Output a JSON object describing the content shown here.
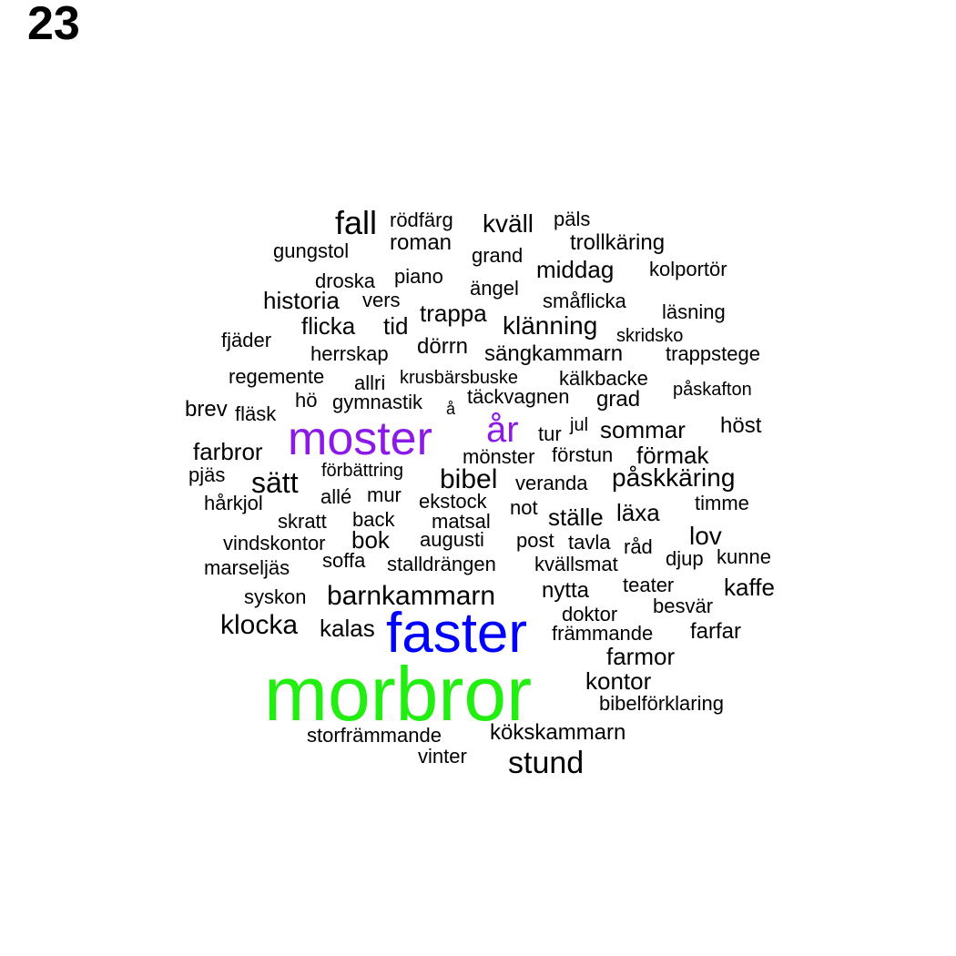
{
  "page_number": "23",
  "colors": {
    "default": "#000000",
    "purple": "#8b1ae8",
    "blue": "#0000ff",
    "green": "#22ee11"
  },
  "words": [
    {
      "text": "morbror",
      "color": "green"
    },
    {
      "text": "faster",
      "color": "blue"
    },
    {
      "text": "moster",
      "color": "purple"
    },
    {
      "text": "år",
      "color": "purple"
    },
    {
      "text": "fall"
    },
    {
      "text": "rödfärg"
    },
    {
      "text": "kväll"
    },
    {
      "text": "päls"
    },
    {
      "text": "roman"
    },
    {
      "text": "trollkäring"
    },
    {
      "text": "gungstol"
    },
    {
      "text": "grand"
    },
    {
      "text": "middag"
    },
    {
      "text": "kolportör"
    },
    {
      "text": "droska"
    },
    {
      "text": "piano"
    },
    {
      "text": "ängel"
    },
    {
      "text": "historia"
    },
    {
      "text": "vers"
    },
    {
      "text": "småflicka"
    },
    {
      "text": "trappa"
    },
    {
      "text": "läsning"
    },
    {
      "text": "flicka"
    },
    {
      "text": "tid"
    },
    {
      "text": "klänning"
    },
    {
      "text": "skridsko"
    },
    {
      "text": "fjäder"
    },
    {
      "text": "dörrn"
    },
    {
      "text": "herrskap"
    },
    {
      "text": "sängkammarn"
    },
    {
      "text": "trappstege"
    },
    {
      "text": "regemente"
    },
    {
      "text": "allri"
    },
    {
      "text": "krusbärsbuske"
    },
    {
      "text": "kälkbacke"
    },
    {
      "text": "påskafton"
    },
    {
      "text": "hö"
    },
    {
      "text": "gymnastik"
    },
    {
      "text": "å"
    },
    {
      "text": "täckvagnen"
    },
    {
      "text": "grad"
    },
    {
      "text": "brev"
    },
    {
      "text": "fläsk"
    },
    {
      "text": "tur"
    },
    {
      "text": "jul"
    },
    {
      "text": "sommar"
    },
    {
      "text": "höst"
    },
    {
      "text": "farbror"
    },
    {
      "text": "mönster"
    },
    {
      "text": "förstun"
    },
    {
      "text": "förmak"
    },
    {
      "text": "pjäs"
    },
    {
      "text": "sätt"
    },
    {
      "text": "förbättring"
    },
    {
      "text": "bibel"
    },
    {
      "text": "veranda"
    },
    {
      "text": "påskkäring"
    },
    {
      "text": "hårkjol"
    },
    {
      "text": "allé"
    },
    {
      "text": "mur"
    },
    {
      "text": "ekstock"
    },
    {
      "text": "not"
    },
    {
      "text": "timme"
    },
    {
      "text": "skratt"
    },
    {
      "text": "back"
    },
    {
      "text": "matsal"
    },
    {
      "text": "ställe"
    },
    {
      "text": "läxa"
    },
    {
      "text": "vindskontor"
    },
    {
      "text": "bok"
    },
    {
      "text": "augusti"
    },
    {
      "text": "post"
    },
    {
      "text": "tavla"
    },
    {
      "text": "råd"
    },
    {
      "text": "lov"
    },
    {
      "text": "marseljäs"
    },
    {
      "text": "soffa"
    },
    {
      "text": "stalldrängen"
    },
    {
      "text": "kvällsmat"
    },
    {
      "text": "djup"
    },
    {
      "text": "kunne"
    },
    {
      "text": "syskon"
    },
    {
      "text": "barnkammarn"
    },
    {
      "text": "nytta"
    },
    {
      "text": "teater"
    },
    {
      "text": "kaffe"
    },
    {
      "text": "besvär"
    },
    {
      "text": "doktor"
    },
    {
      "text": "klocka"
    },
    {
      "text": "kalas"
    },
    {
      "text": "främmande"
    },
    {
      "text": "farfar"
    },
    {
      "text": "farmor"
    },
    {
      "text": "kontor"
    },
    {
      "text": "bibelförklaring"
    },
    {
      "text": "storfrämmande"
    },
    {
      "text": "kökskammarn"
    },
    {
      "text": "vinter"
    },
    {
      "text": "stund"
    }
  ]
}
